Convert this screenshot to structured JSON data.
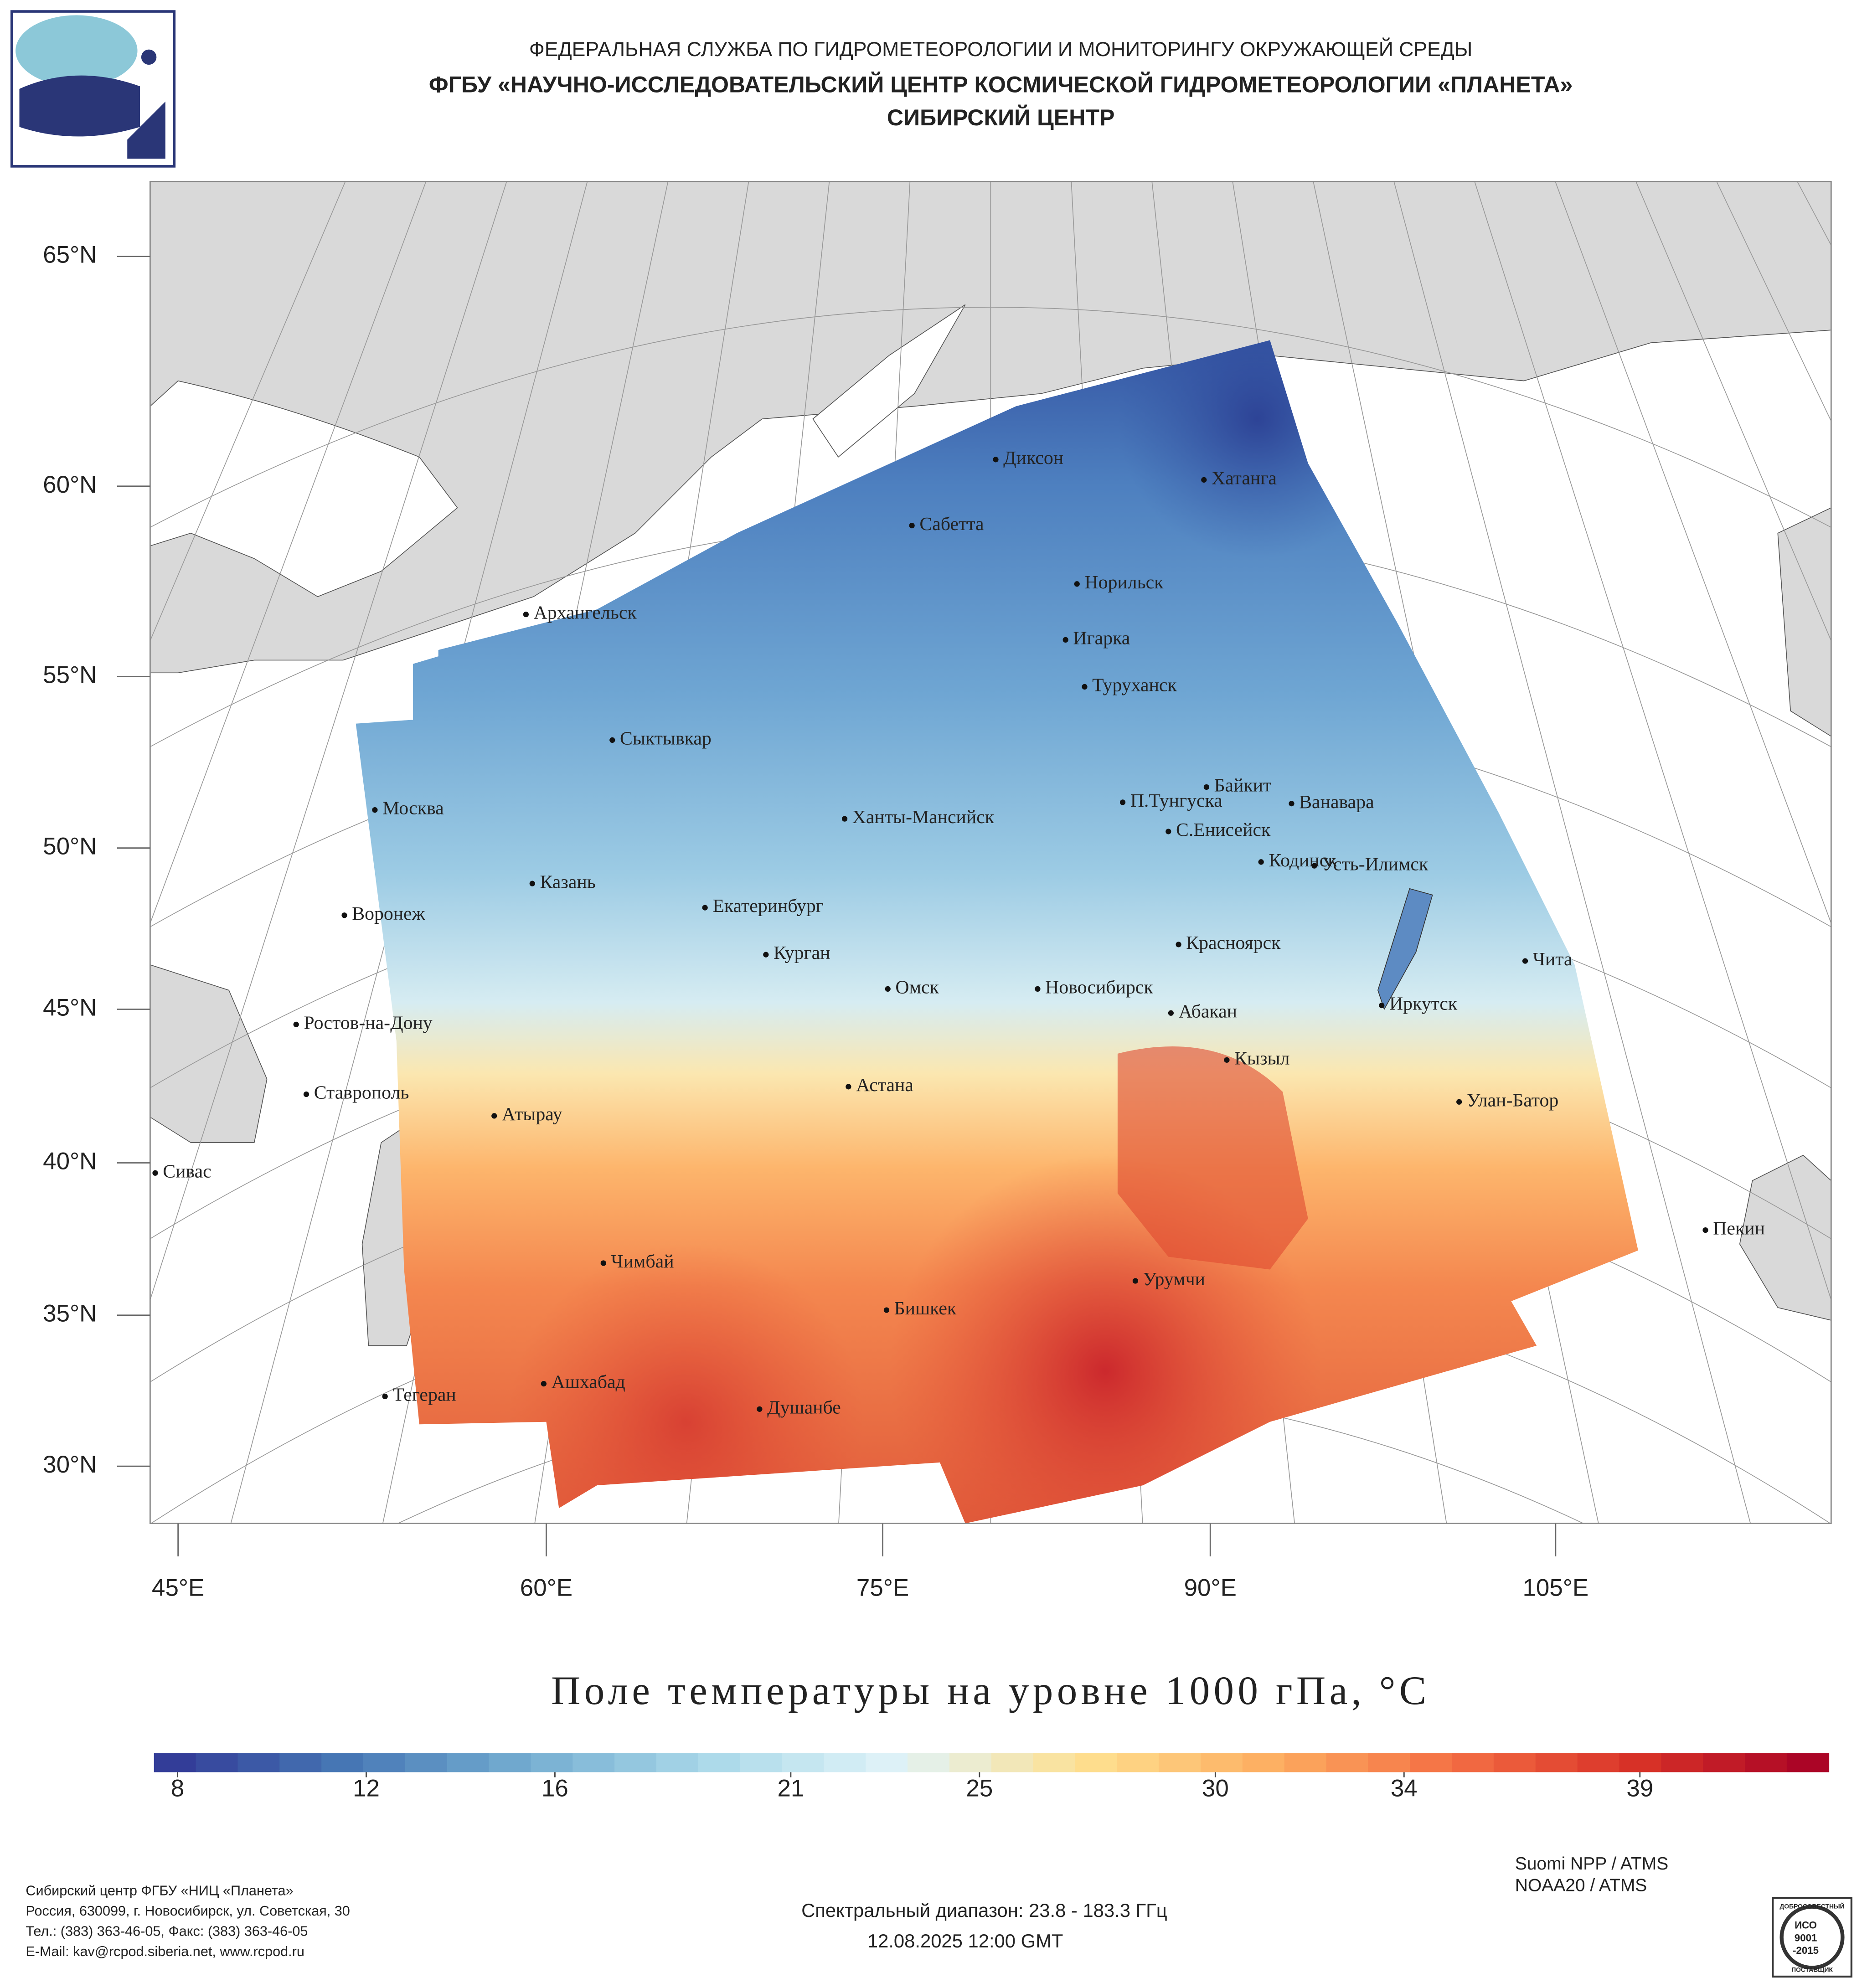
{
  "header": {
    "line1": "ФЕДЕРАЛЬНАЯ СЛУЖБА ПО ГИДРОМЕТЕОРОЛОГИИ И МОНИТОРИНГУ ОКРУЖАЮЩЕЙ СРЕДЫ",
    "line2": "ФГБУ «НАУЧНО-ИССЛЕДОВАТЕЛЬСКИЙ ЦЕНТР КОСМИЧЕСКОЙ ГИДРОМЕТЕОРОЛОГИИ «ПЛАНЕТА»",
    "line3": "СИБИРСКИЙ ЦЕНТР"
  },
  "map": {
    "lat_labels": [
      "65°N",
      "60°N",
      "55°N",
      "50°N",
      "45°N",
      "40°N",
      "35°N",
      "30°N"
    ],
    "lon_labels": [
      "45°E",
      "60°E",
      "75°E",
      "90°E",
      "105°E"
    ],
    "cities": [
      "Диксон",
      "Хатанга",
      "Сабетта",
      "Архангельск",
      "Норильск",
      "Игарка",
      "Туруханск",
      "Сыктывкар",
      "Байкит",
      "П.Тунгуска",
      "Ванавара",
      "Москва",
      "Ханты-Мансийск",
      "С.Енисейск",
      "Кодинск",
      "Усть-Илимск",
      "Казань",
      "Екатеринбург",
      "Воронеж",
      "Красноярск",
      "Курган",
      "Чита",
      "Омск",
      "Новосибирск",
      "Иркутск",
      "Абакан",
      "Ростов-на-Дону",
      "Кызыл",
      "Ставрополь",
      "Астана",
      "Улан-Батор",
      "Атырау",
      "Сивас",
      "Пекин",
      "Чимбай",
      "Урумчи",
      "Бишкек",
      "Ашхабад",
      "Тегеран",
      "Душанбе"
    ]
  },
  "colorbar": {
    "title": "Поле температуры на уровне 1000 гПа, °C",
    "clim": [
      7.5,
      43
    ],
    "ticks": [
      8,
      12,
      16,
      21,
      25,
      30,
      34,
      39
    ]
  },
  "footer": {
    "address": [
      "Сибирский центр ФГБУ «НИЦ «Планета»",
      "Россия, 630099, г. Новосибирск, ул. Советская, 30",
      "Тел.: (383) 363-46-05, Факс: (383) 363-46-05",
      "E-Mail: kav@rcpod.siberia.net, www.rcpod.ru"
    ],
    "spectral": "Спектральный диапазон: 23.8 - 183.3 ГГц",
    "datetime": "12.08.2025 12:00 GMT",
    "satellites": [
      "Suomi NPP / ATMS",
      "NOAA20 / ATMS"
    ],
    "iso": [
      "ДОБРОСОВЕСТНЫЙ",
      "ИСО",
      "9001",
      "-2015",
      "ПОСТАВЩИК"
    ]
  }
}
